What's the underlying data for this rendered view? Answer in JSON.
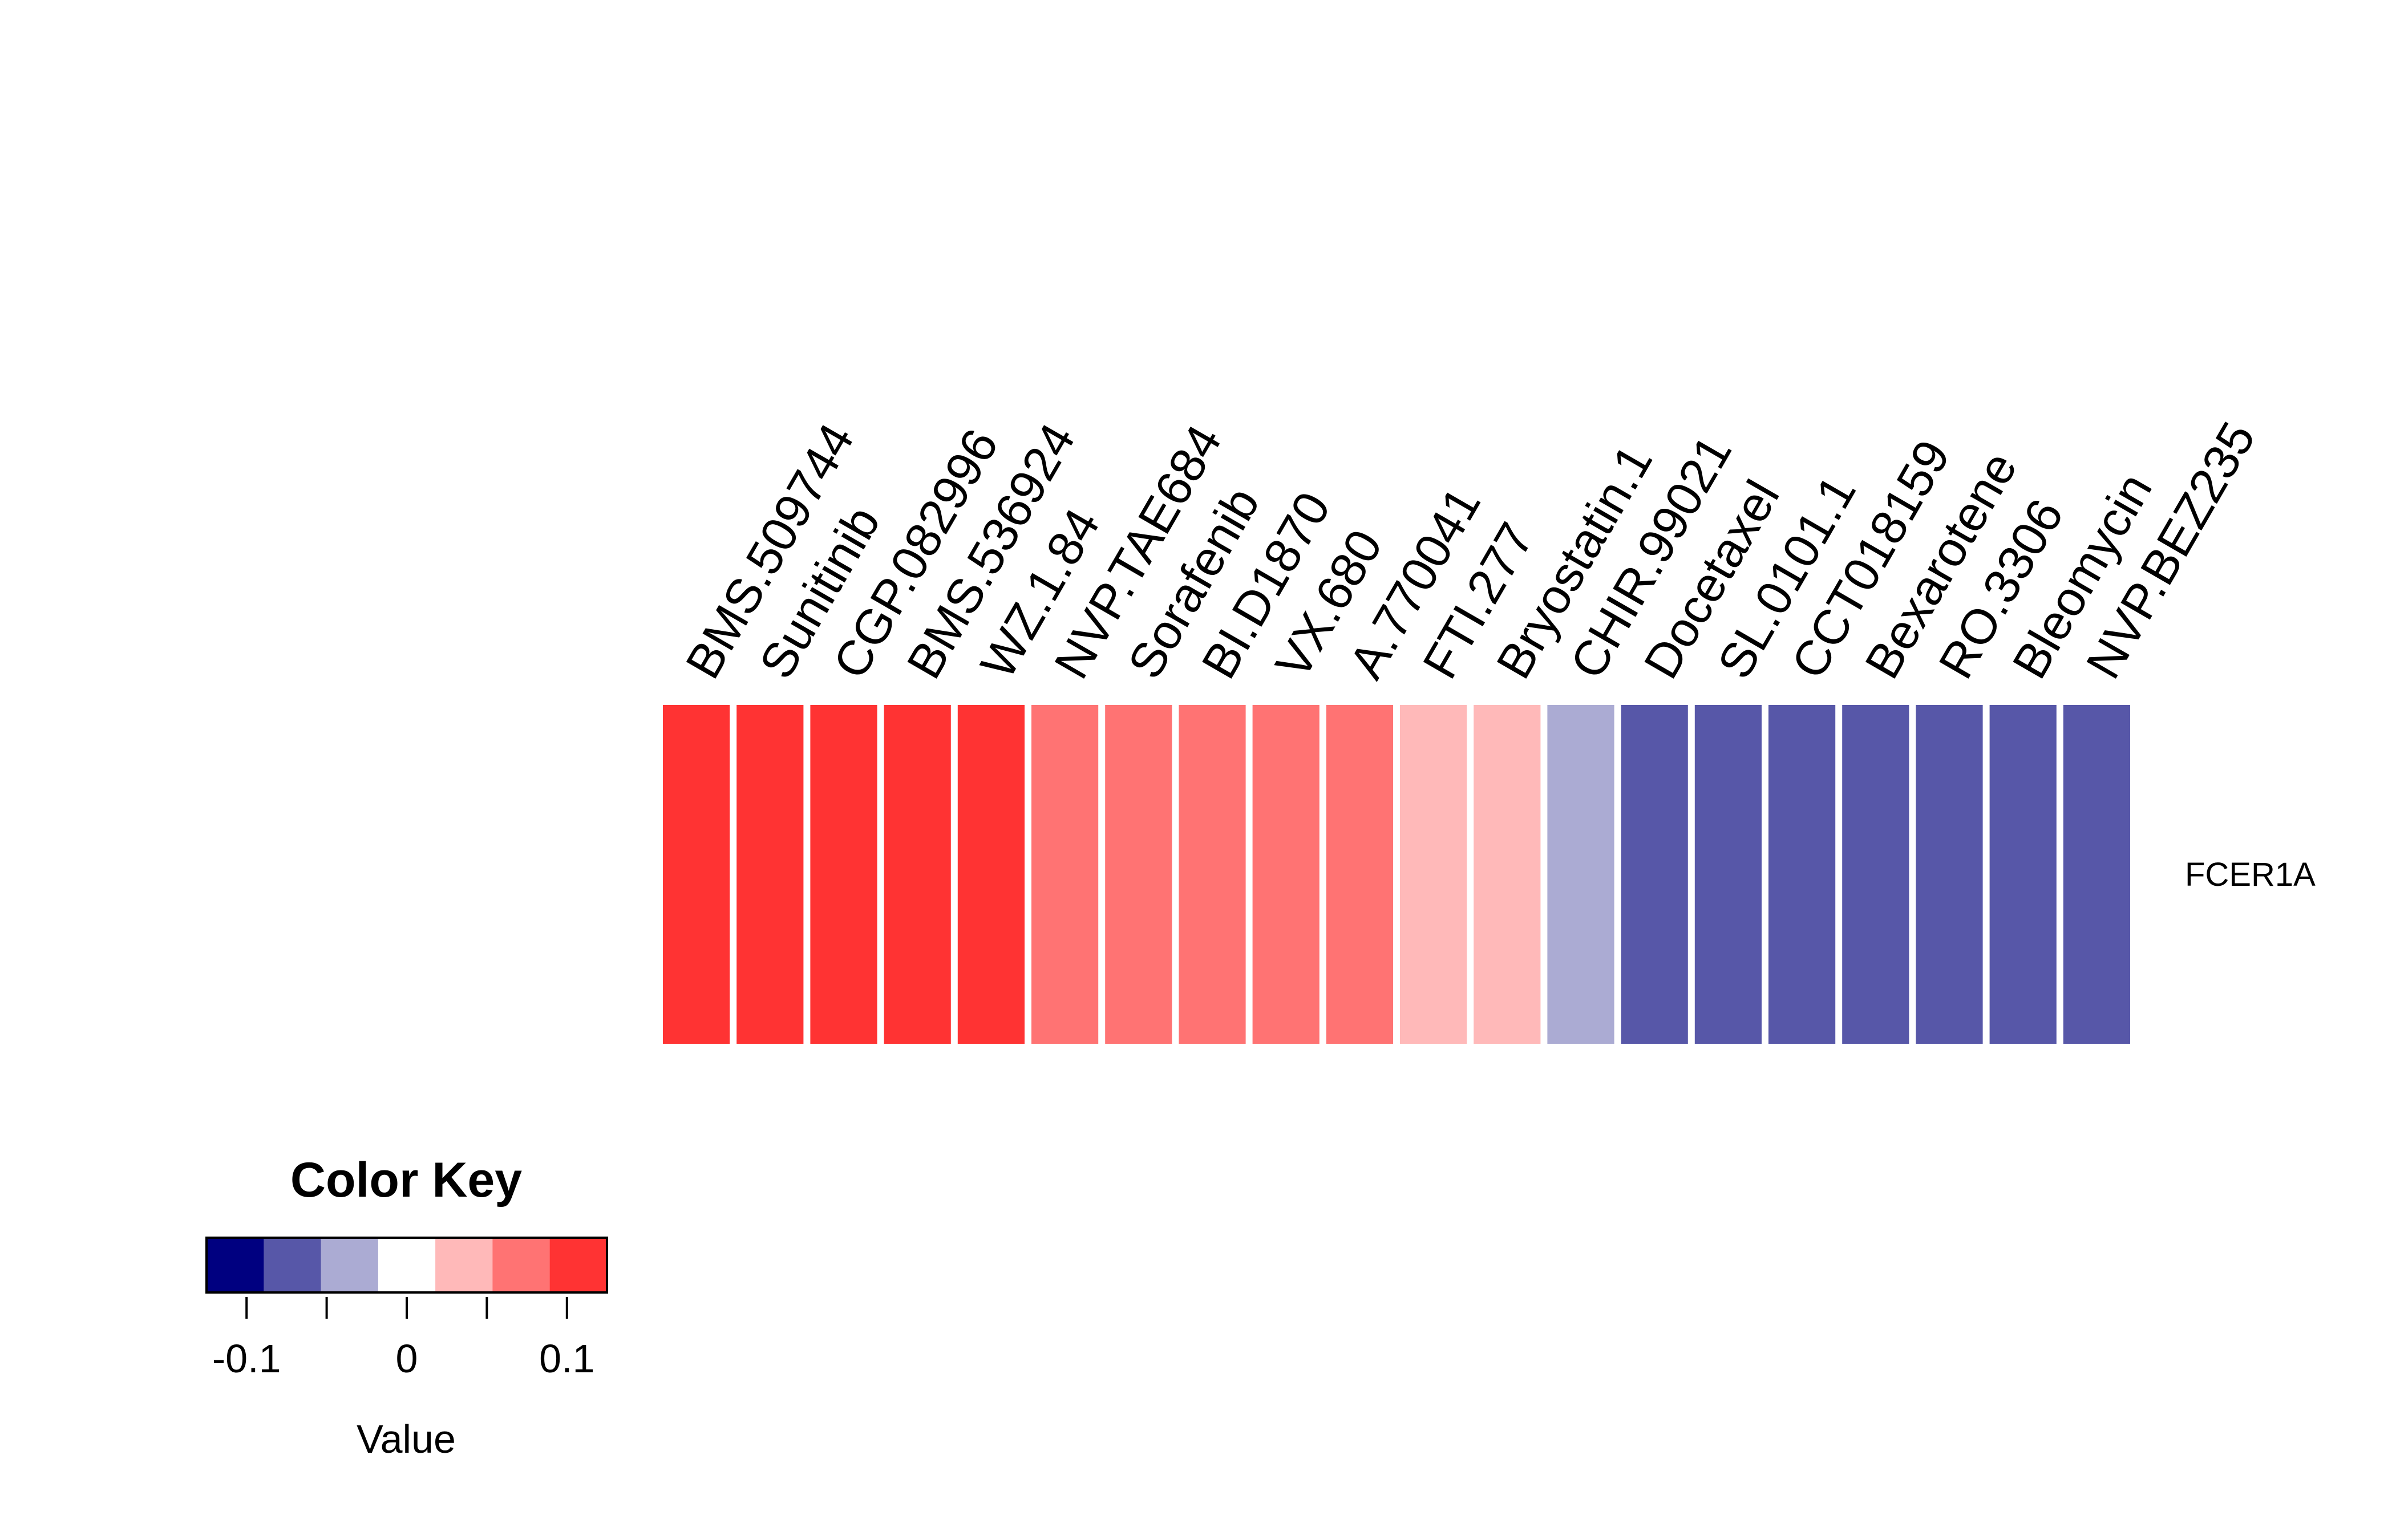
{
  "chart_data": {
    "type": "heatmap",
    "rows": [
      "FCER1A"
    ],
    "columns": [
      "BMS.509744",
      "Sunitinib",
      "CGP.082996",
      "BMS.536924",
      "WZ.1.84",
      "NVP.TAE684",
      "Sorafenib",
      "BI.D1870",
      "VX.680",
      "A.770041",
      "FTI.277",
      "Bryostatin.1",
      "CHIR.99021",
      "Docetaxel",
      "SL.0101.1",
      "CCT018159",
      "Bexarotene",
      "RO.3306",
      "Bleomycin",
      "NVP.BEZ235"
    ],
    "values": [
      [
        0.1,
        0.1,
        0.1,
        0.1,
        0.1,
        0.07,
        0.07,
        0.07,
        0.07,
        0.07,
        0.03,
        0.03,
        -0.03,
        -0.07,
        -0.07,
        -0.07,
        -0.07,
        -0.07,
        -0.07,
        -0.07
      ]
    ],
    "color_key": {
      "title": "Color Key",
      "xlabel": "Value",
      "range": [
        -0.125,
        0.125
      ],
      "ticks": [
        {
          "value": -0.1,
          "label": "-0.1"
        },
        {
          "value": -0.05,
          "label": ""
        },
        {
          "value": 0,
          "label": "0"
        },
        {
          "value": 0.05,
          "label": ""
        },
        {
          "value": 0.1,
          "label": "0.1"
        }
      ],
      "colors": [
        "#000080",
        "#5757A8",
        "#ABABD3",
        "#FFFFFF",
        "#FFB9B9",
        "#FF7373",
        "#FF3333"
      ]
    }
  }
}
